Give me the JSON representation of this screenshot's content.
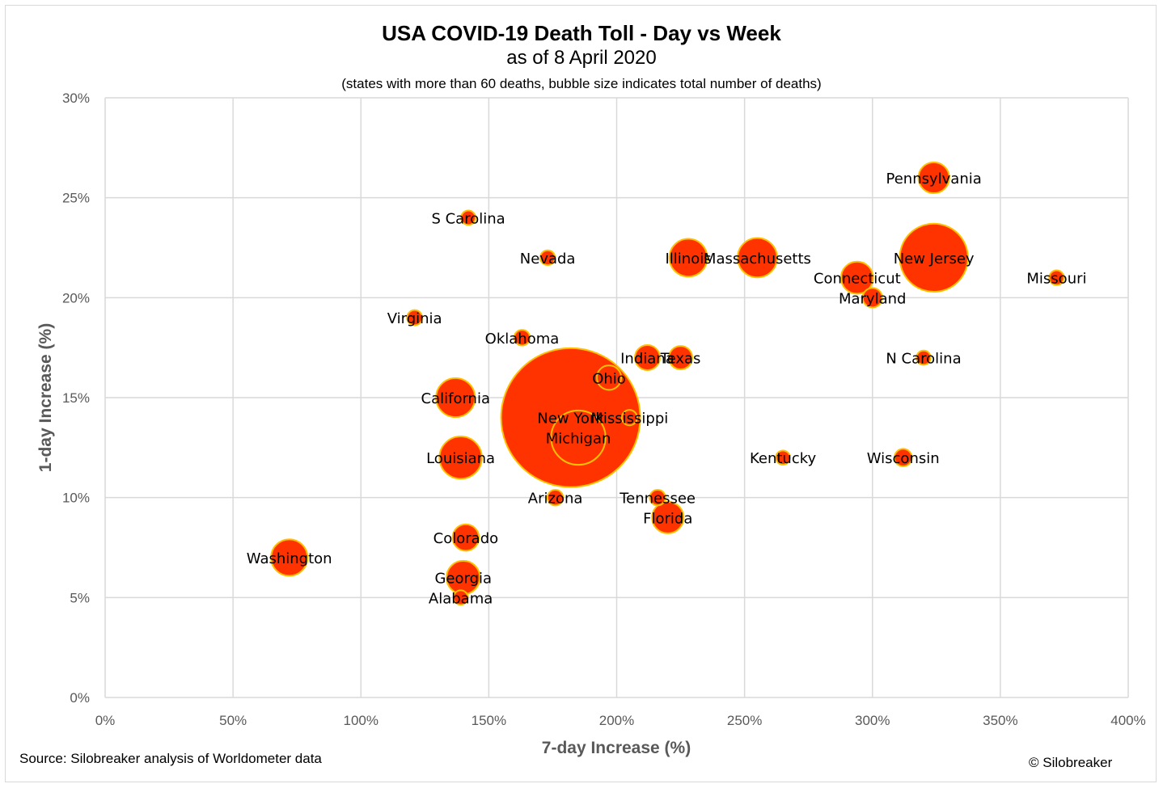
{
  "chart_data": {
    "type": "scatter",
    "subtype": "bubble",
    "title": "USA COVID-19 Death Toll - Day vs Week",
    "subtitle": "as of 8 April 2020",
    "note": "(states with more than 60 deaths, bubble size indicates total number of deaths)",
    "xlabel": "7-day Increase (%)",
    "ylabel": "1-day Increase (%)",
    "xlim": [
      0,
      400
    ],
    "ylim": [
      0,
      30
    ],
    "x_ticks": [
      "0%",
      "50%",
      "100%",
      "150%",
      "200%",
      "250%",
      "300%",
      "350%",
      "400%"
    ],
    "y_ticks": [
      "0%",
      "5%",
      "10%",
      "15%",
      "20%",
      "25%",
      "30%"
    ],
    "grid": true,
    "legend": "none",
    "colors": {
      "fill": "#ff3300",
      "stroke": "#ffc000",
      "grid": "#d9d9d9",
      "axis_text": "#595959"
    },
    "series": [
      {
        "points": [
          {
            "label": "New York",
            "x": 182,
            "y": 14,
            "size": 6268
          },
          {
            "label": "New Jersey",
            "x": 324,
            "y": 22,
            "size": 1504
          },
          {
            "label": "Michigan",
            "x": 185,
            "y": 13,
            "size": 959
          },
          {
            "label": "Louisiana",
            "x": 139,
            "y": 12,
            "size": 582
          },
          {
            "label": "California",
            "x": 137,
            "y": 15,
            "size": 491
          },
          {
            "label": "Massachusetts",
            "x": 255,
            "y": 22,
            "size": 503
          },
          {
            "label": "Illinois",
            "x": 228,
            "y": 22,
            "size": 462
          },
          {
            "label": "Washington",
            "x": 72,
            "y": 7,
            "size": 431
          },
          {
            "label": "Pennsylvania",
            "x": 324,
            "y": 26,
            "size": 309
          },
          {
            "label": "Georgia",
            "x": 140,
            "y": 6,
            "size": 362
          },
          {
            "label": "Connecticut",
            "x": 294,
            "y": 21,
            "size": 335
          },
          {
            "label": "Florida",
            "x": 220,
            "y": 9,
            "size": 323
          },
          {
            "label": "Colorado",
            "x": 141,
            "y": 8,
            "size": 226
          },
          {
            "label": "Indiana",
            "x": 212,
            "y": 17,
            "size": 203
          },
          {
            "label": "Ohio",
            "x": 197,
            "y": 16,
            "size": 193
          },
          {
            "label": "Texas",
            "x": 225,
            "y": 17,
            "size": 177
          },
          {
            "label": "Wisconsin",
            "x": 312,
            "y": 12,
            "size": 99
          },
          {
            "label": "Maryland",
            "x": 300,
            "y": 20,
            "size": 124
          },
          {
            "label": "Missouri",
            "x": 372,
            "y": 21,
            "size": 70
          },
          {
            "label": "Virginia",
            "x": 121,
            "y": 19,
            "size": 75
          },
          {
            "label": "Nevada",
            "x": 173,
            "y": 22,
            "size": 71
          },
          {
            "label": "Oklahoma",
            "x": 163,
            "y": 18,
            "size": 80
          },
          {
            "label": "Tennessee",
            "x": 216,
            "y": 10,
            "size": 79
          },
          {
            "label": "Arizona",
            "x": 176,
            "y": 10,
            "size": 80
          },
          {
            "label": "S Carolina",
            "x": 142,
            "y": 24,
            "size": 67
          },
          {
            "label": "N Carolina",
            "x": 320,
            "y": 17,
            "size": 66
          },
          {
            "label": "Mississippi",
            "x": 205,
            "y": 14,
            "size": 76
          },
          {
            "label": "Kentucky",
            "x": 265,
            "y": 12,
            "size": 65
          },
          {
            "label": "Alabama",
            "x": 139,
            "y": 5,
            "size": 68
          }
        ]
      }
    ]
  },
  "footer": {
    "source": "Source: Silobreaker analysis of Worldometer data",
    "copyright": "© Silobreaker"
  }
}
